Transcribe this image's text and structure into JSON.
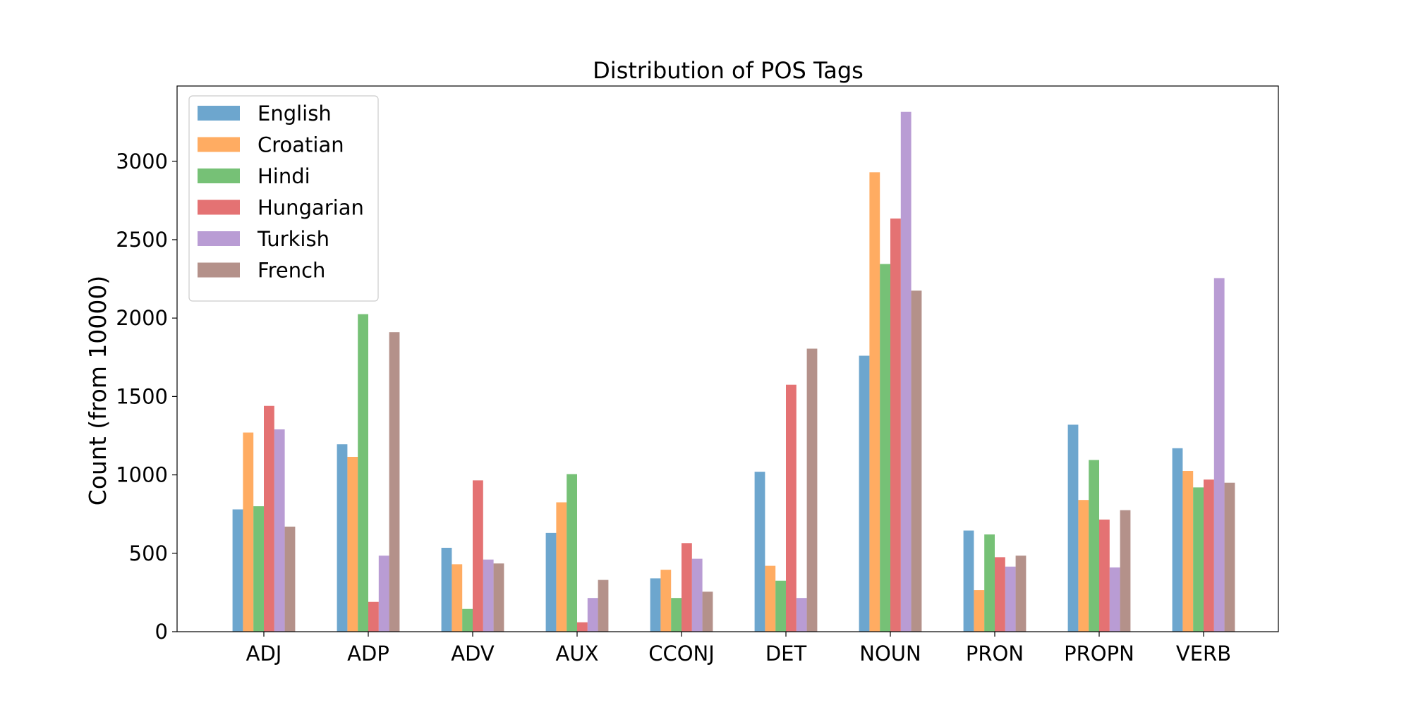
{
  "chart_data": {
    "type": "bar",
    "title": "Distribution of POS Tags",
    "xlabel": "",
    "ylabel": "Count (from 10000)",
    "categories": [
      "ADJ",
      "ADP",
      "ADV",
      "AUX",
      "CCONJ",
      "DET",
      "NOUN",
      "PRON",
      "PROPN",
      "VERB"
    ],
    "ylim": [
      0,
      3480
    ],
    "yticks": [
      0,
      500,
      1000,
      1500,
      2000,
      2500,
      3000
    ],
    "grid": false,
    "legend_position": "top-left",
    "series": [
      {
        "name": "English",
        "color": "#1f77b4",
        "values": [
          780,
          1195,
          535,
          630,
          340,
          1020,
          1760,
          645,
          1320,
          1170
        ]
      },
      {
        "name": "Croatian",
        "color": "#ff7f0e",
        "values": [
          1270,
          1115,
          430,
          825,
          395,
          420,
          2930,
          265,
          840,
          1025
        ]
      },
      {
        "name": "Hindi",
        "color": "#2ca02c",
        "values": [
          800,
          2025,
          145,
          1005,
          215,
          325,
          2345,
          620,
          1095,
          920
        ]
      },
      {
        "name": "Hungarian",
        "color": "#d62728",
        "values": [
          1440,
          190,
          965,
          60,
          565,
          1575,
          2635,
          475,
          715,
          970
        ]
      },
      {
        "name": "Turkish",
        "color": "#9467bd",
        "values": [
          1290,
          485,
          460,
          215,
          465,
          215,
          3315,
          415,
          410,
          2255
        ]
      },
      {
        "name": "French",
        "color": "#8c564b",
        "values": [
          670,
          1910,
          435,
          330,
          255,
          1805,
          2175,
          485,
          775,
          950
        ]
      }
    ]
  }
}
